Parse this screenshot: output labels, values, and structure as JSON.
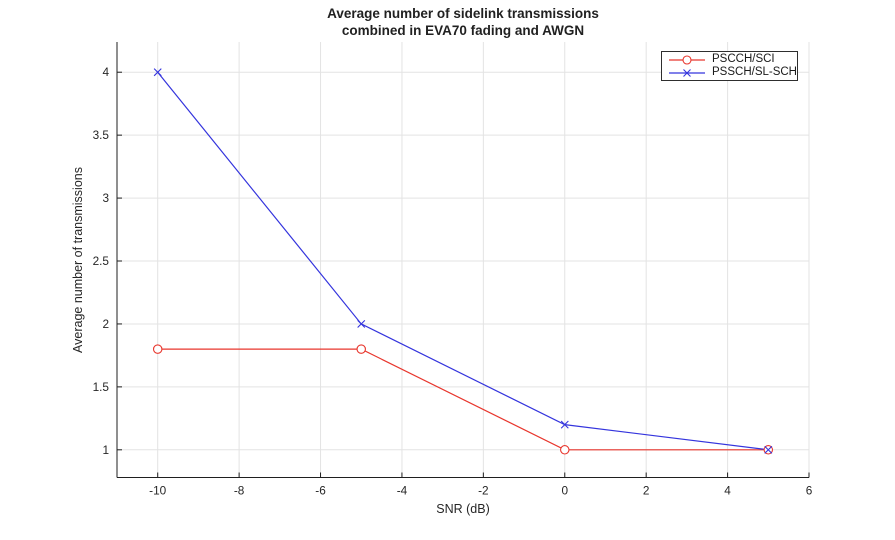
{
  "chart_data": {
    "type": "line",
    "title": "Average number of sidelink transmissions combined in EVA70 fading and AWGN",
    "title_lines": [
      "Average number of sidelink transmissions",
      "combined in EVA70 fading and AWGN"
    ],
    "xlabel": "SNR (dB)",
    "ylabel": "Average number of transmissions",
    "x": [
      -10,
      -5,
      0,
      5
    ],
    "series": [
      {
        "name": "PSCCH/SCI",
        "color": "#e8362d",
        "marker": "circle",
        "values": [
          1.8,
          1.8,
          1.0,
          1.0
        ]
      },
      {
        "name": "PSSCH/SL-SCH",
        "color": "#3434dd",
        "marker": "x",
        "values": [
          4.0,
          2.0,
          1.2,
          1.0
        ]
      }
    ],
    "xlim": [
      -11,
      6
    ],
    "ylim": [
      0.78,
      4.24
    ],
    "xticks": [
      -10,
      -8,
      -6,
      -4,
      -2,
      0,
      2,
      4,
      6
    ],
    "yticks": [
      1,
      1.5,
      2,
      2.5,
      3,
      3.5,
      4
    ],
    "grid": true,
    "box": false,
    "legend_position": "top-right",
    "colors": {
      "grid": "#e3e3e3",
      "axis": "#1f1f1f",
      "text": "#262626",
      "background": "#ffffff"
    }
  }
}
